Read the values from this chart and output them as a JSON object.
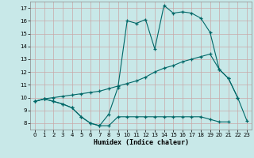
{
  "xlabel": "Humidex (Indice chaleur)",
  "bg_color": "#c8e8e8",
  "line_color": "#006868",
  "grid_color": "#c8a8a8",
  "xlim": [
    -0.5,
    23.5
  ],
  "ylim": [
    7.5,
    17.5
  ],
  "xticks": [
    0,
    1,
    2,
    3,
    4,
    5,
    6,
    7,
    8,
    9,
    10,
    11,
    12,
    13,
    14,
    15,
    16,
    17,
    18,
    19,
    20,
    21,
    22,
    23
  ],
  "yticks": [
    8,
    9,
    10,
    11,
    12,
    13,
    14,
    15,
    16,
    17
  ],
  "line1_x": [
    0,
    1,
    2,
    3,
    4,
    5,
    6,
    7,
    8,
    9,
    10,
    11,
    12,
    13,
    14,
    15,
    16,
    17,
    18,
    19,
    20,
    21
  ],
  "line1_y": [
    9.7,
    9.9,
    9.7,
    9.5,
    9.2,
    8.5,
    8.0,
    7.8,
    7.8,
    8.5,
    8.5,
    8.5,
    8.5,
    8.5,
    8.5,
    8.5,
    8.5,
    8.5,
    8.5,
    8.3,
    8.1,
    8.1
  ],
  "line2_x": [
    0,
    1,
    2,
    3,
    4,
    5,
    6,
    7,
    8,
    9,
    10,
    11,
    12,
    13,
    14,
    15,
    16,
    17,
    18,
    19,
    20,
    21,
    22
  ],
  "line2_y": [
    9.7,
    9.9,
    10.0,
    10.1,
    10.2,
    10.3,
    10.4,
    10.5,
    10.7,
    10.9,
    11.1,
    11.3,
    11.6,
    12.0,
    12.3,
    12.5,
    12.8,
    13.0,
    13.2,
    13.4,
    12.2,
    11.5,
    10.0
  ],
  "line3_x": [
    0,
    1,
    2,
    3,
    4,
    5,
    6,
    7,
    8,
    9,
    10,
    11,
    12,
    13,
    14,
    15,
    16,
    17,
    18,
    19,
    20,
    21,
    22,
    23
  ],
  "line3_y": [
    9.7,
    9.9,
    9.7,
    9.5,
    9.2,
    8.5,
    8.0,
    7.8,
    8.7,
    10.8,
    16.0,
    15.8,
    16.1,
    13.8,
    17.2,
    16.6,
    16.7,
    16.6,
    16.2,
    15.1,
    12.2,
    11.5,
    10.0,
    8.2
  ]
}
